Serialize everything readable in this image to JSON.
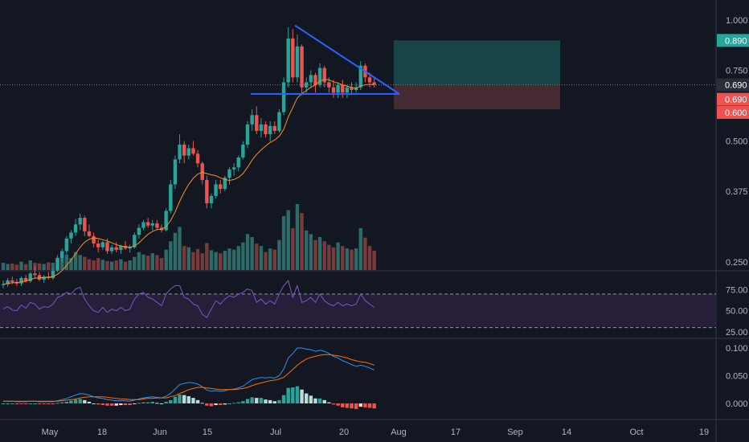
{
  "colors": {
    "background": "#131722",
    "axis_text": "#b2b5be",
    "grid": "#2a2e39",
    "up": "#26a69a",
    "down": "#ef5350",
    "vol_up": "#2d6b68",
    "vol_down": "#7a3a3c",
    "ma": "#f7931a",
    "triangle": "#2962ff",
    "target_zone": "#1b4a4e",
    "stop_zone": "#4b2c33",
    "rsi": "#7e57c2",
    "rsi_band": "#2a1f3d",
    "macd_line": "#2196f3",
    "signal_line": "#ff6d00",
    "price_label_current": "#26a69a",
    "price_label_stop": "#ef5350"
  },
  "price_axis": {
    "ticks": [
      "1.000",
      "0.750",
      "0.500",
      "0.375",
      "0.250"
    ]
  },
  "price_labels": [
    {
      "text": "0.890",
      "kind": "target"
    },
    {
      "text": "0.690",
      "kind": "current-dark"
    },
    {
      "text": "0.690",
      "kind": "entry"
    },
    {
      "text": "0.600",
      "kind": "stop"
    }
  ],
  "rsi_axis": {
    "ticks": [
      "75.00",
      "50.00",
      "25.00"
    ]
  },
  "macd_axis": {
    "ticks": [
      "0.100",
      "0.050",
      "0.000"
    ]
  },
  "time_axis": {
    "labels": [
      "May",
      "18",
      "Jun",
      "15",
      "Jul",
      "20",
      "Aug",
      "17",
      "Sep",
      "14",
      "Oct",
      "19"
    ]
  },
  "chart_data": {
    "type": "candlestick",
    "price_scale": "log",
    "candles": [
      [
        0.22,
        0.225,
        0.215,
        0.22
      ],
      [
        0.22,
        0.228,
        0.217,
        0.225
      ],
      [
        0.225,
        0.23,
        0.22,
        0.223
      ],
      [
        0.223,
        0.227,
        0.218,
        0.221
      ],
      [
        0.221,
        0.23,
        0.218,
        0.228
      ],
      [
        0.228,
        0.232,
        0.222,
        0.224
      ],
      [
        0.224,
        0.236,
        0.222,
        0.234
      ],
      [
        0.234,
        0.244,
        0.228,
        0.232
      ],
      [
        0.232,
        0.236,
        0.224,
        0.226
      ],
      [
        0.226,
        0.232,
        0.222,
        0.23
      ],
      [
        0.23,
        0.236,
        0.226,
        0.228
      ],
      [
        0.228,
        0.24,
        0.226,
        0.238
      ],
      [
        0.238,
        0.26,
        0.236,
        0.256
      ],
      [
        0.256,
        0.27,
        0.25,
        0.266
      ],
      [
        0.266,
        0.29,
        0.262,
        0.286
      ],
      [
        0.286,
        0.3,
        0.278,
        0.296
      ],
      [
        0.296,
        0.32,
        0.29,
        0.31
      ],
      [
        0.31,
        0.33,
        0.3,
        0.322
      ],
      [
        0.322,
        0.326,
        0.29,
        0.298
      ],
      [
        0.298,
        0.31,
        0.288,
        0.29
      ],
      [
        0.29,
        0.296,
        0.272,
        0.278
      ],
      [
        0.278,
        0.284,
        0.264,
        0.272
      ],
      [
        0.272,
        0.282,
        0.268,
        0.28
      ],
      [
        0.28,
        0.286,
        0.262,
        0.266
      ],
      [
        0.266,
        0.276,
        0.262,
        0.272
      ],
      [
        0.272,
        0.28,
        0.264,
        0.268
      ],
      [
        0.268,
        0.276,
        0.262,
        0.274
      ],
      [
        0.274,
        0.282,
        0.268,
        0.27
      ],
      [
        0.27,
        0.276,
        0.264,
        0.272
      ],
      [
        0.272,
        0.296,
        0.27,
        0.292
      ],
      [
        0.292,
        0.31,
        0.286,
        0.304
      ],
      [
        0.304,
        0.318,
        0.3,
        0.314
      ],
      [
        0.314,
        0.322,
        0.304,
        0.308
      ],
      [
        0.308,
        0.318,
        0.3,
        0.312
      ],
      [
        0.312,
        0.318,
        0.3,
        0.304
      ],
      [
        0.304,
        0.31,
        0.296,
        0.3
      ],
      [
        0.3,
        0.34,
        0.298,
        0.335
      ],
      [
        0.335,
        0.4,
        0.33,
        0.39
      ],
      [
        0.39,
        0.46,
        0.38,
        0.45
      ],
      [
        0.45,
        0.52,
        0.44,
        0.49
      ],
      [
        0.49,
        0.5,
        0.44,
        0.46
      ],
      [
        0.46,
        0.49,
        0.45,
        0.48
      ],
      [
        0.48,
        0.5,
        0.46,
        0.465
      ],
      [
        0.465,
        0.475,
        0.43,
        0.44
      ],
      [
        0.44,
        0.445,
        0.39,
        0.4
      ],
      [
        0.4,
        0.41,
        0.34,
        0.35
      ],
      [
        0.35,
        0.37,
        0.34,
        0.365
      ],
      [
        0.365,
        0.4,
        0.36,
        0.39
      ],
      [
        0.39,
        0.4,
        0.37,
        0.38
      ],
      [
        0.38,
        0.41,
        0.375,
        0.405
      ],
      [
        0.405,
        0.43,
        0.39,
        0.425
      ],
      [
        0.425,
        0.44,
        0.41,
        0.43
      ],
      [
        0.43,
        0.46,
        0.42,
        0.455
      ],
      [
        0.455,
        0.5,
        0.45,
        0.49
      ],
      [
        0.49,
        0.56,
        0.48,
        0.55
      ],
      [
        0.55,
        0.6,
        0.53,
        0.58
      ],
      [
        0.58,
        0.61,
        0.52,
        0.53
      ],
      [
        0.53,
        0.57,
        0.51,
        0.55
      ],
      [
        0.55,
        0.56,
        0.51,
        0.52
      ],
      [
        0.52,
        0.56,
        0.5,
        0.545
      ],
      [
        0.545,
        0.56,
        0.52,
        0.53
      ],
      [
        0.53,
        0.6,
        0.525,
        0.59
      ],
      [
        0.59,
        0.72,
        0.58,
        0.7
      ],
      [
        0.7,
        0.96,
        0.68,
        0.9
      ],
      [
        0.9,
        0.95,
        0.7,
        0.72
      ],
      [
        0.72,
        0.92,
        0.7,
        0.86
      ],
      [
        0.86,
        0.87,
        0.65,
        0.68
      ],
      [
        0.68,
        0.72,
        0.66,
        0.7
      ],
      [
        0.7,
        0.75,
        0.68,
        0.73
      ],
      [
        0.73,
        0.74,
        0.66,
        0.69
      ],
      [
        0.69,
        0.78,
        0.68,
        0.76
      ],
      [
        0.76,
        0.77,
        0.68,
        0.7
      ],
      [
        0.7,
        0.72,
        0.66,
        0.68
      ],
      [
        0.68,
        0.71,
        0.64,
        0.66
      ],
      [
        0.66,
        0.7,
        0.64,
        0.69
      ],
      [
        0.69,
        0.71,
        0.64,
        0.66
      ],
      [
        0.66,
        0.69,
        0.64,
        0.68
      ],
      [
        0.68,
        0.7,
        0.65,
        0.67
      ],
      [
        0.67,
        0.7,
        0.66,
        0.68
      ],
      [
        0.68,
        0.79,
        0.67,
        0.77
      ],
      [
        0.77,
        0.78,
        0.7,
        0.72
      ],
      [
        0.72,
        0.74,
        0.68,
        0.7
      ],
      [
        0.7,
        0.72,
        0.68,
        0.69
      ]
    ],
    "volume": [
      12,
      10,
      11,
      9,
      14,
      10,
      16,
      12,
      11,
      10,
      13,
      12,
      18,
      22,
      26,
      20,
      30,
      25,
      22,
      18,
      16,
      20,
      17,
      15,
      14,
      16,
      18,
      14,
      16,
      22,
      30,
      26,
      24,
      28,
      25,
      20,
      34,
      48,
      62,
      72,
      40,
      38,
      30,
      35,
      28,
      45,
      33,
      30,
      28,
      32,
      36,
      34,
      40,
      46,
      60,
      55,
      44,
      40,
      30,
      36,
      34,
      50,
      90,
      100,
      70,
      110,
      95,
      66,
      60,
      50,
      55,
      48,
      42,
      38,
      46,
      40,
      36,
      34,
      36,
      70,
      54,
      40,
      32
    ],
    "ma": [
      0.22,
      0.221,
      0.222,
      0.222,
      0.223,
      0.224,
      0.226,
      0.228,
      0.228,
      0.229,
      0.229,
      0.23,
      0.233,
      0.238,
      0.245,
      0.253,
      0.262,
      0.272,
      0.28,
      0.285,
      0.287,
      0.286,
      0.284,
      0.282,
      0.279,
      0.276,
      0.274,
      0.273,
      0.272,
      0.274,
      0.279,
      0.286,
      0.293,
      0.298,
      0.301,
      0.302,
      0.306,
      0.317,
      0.333,
      0.354,
      0.373,
      0.39,
      0.404,
      0.414,
      0.418,
      0.415,
      0.412,
      0.41,
      0.405,
      0.401,
      0.399,
      0.401,
      0.406,
      0.415,
      0.43,
      0.448,
      0.463,
      0.475,
      0.486,
      0.496,
      0.503,
      0.514,
      0.535,
      0.574,
      0.606,
      0.64,
      0.656,
      0.668,
      0.68,
      0.69,
      0.705,
      0.712,
      0.71,
      0.702,
      0.697,
      0.69,
      0.685,
      0.68,
      0.677,
      0.686,
      0.69,
      0.692,
      0.69
    ],
    "rsi": [
      52,
      55,
      51,
      50,
      57,
      53,
      60,
      58,
      52,
      55,
      54,
      58,
      66,
      68,
      72,
      70,
      76,
      78,
      64,
      56,
      50,
      48,
      54,
      48,
      52,
      50,
      54,
      50,
      52,
      64,
      70,
      72,
      66,
      64,
      60,
      56,
      70,
      76,
      80,
      80,
      66,
      64,
      58,
      56,
      46,
      42,
      52,
      62,
      58,
      64,
      68,
      66,
      70,
      72,
      76,
      74,
      60,
      64,
      58,
      62,
      58,
      70,
      80,
      86,
      66,
      80,
      60,
      62,
      66,
      60,
      70,
      62,
      58,
      56,
      60,
      56,
      58,
      56,
      58,
      70,
      62,
      58,
      54
    ],
    "macd": [
      0.004,
      0.004,
      0.004,
      0.003,
      0.003,
      0.003,
      0.004,
      0.004,
      0.003,
      0.003,
      0.003,
      0.003,
      0.005,
      0.007,
      0.009,
      0.012,
      0.015,
      0.018,
      0.017,
      0.015,
      0.012,
      0.01,
      0.009,
      0.007,
      0.006,
      0.005,
      0.005,
      0.005,
      0.004,
      0.006,
      0.008,
      0.01,
      0.011,
      0.012,
      0.011,
      0.01,
      0.013,
      0.018,
      0.026,
      0.034,
      0.036,
      0.038,
      0.037,
      0.035,
      0.03,
      0.024,
      0.022,
      0.023,
      0.022,
      0.023,
      0.025,
      0.026,
      0.028,
      0.031,
      0.037,
      0.043,
      0.045,
      0.047,
      0.046,
      0.047,
      0.046,
      0.05,
      0.062,
      0.082,
      0.09,
      0.1,
      0.1,
      0.098,
      0.097,
      0.094,
      0.096,
      0.094,
      0.09,
      0.085,
      0.082,
      0.077,
      0.074,
      0.07,
      0.067,
      0.069,
      0.067,
      0.064,
      0.06
    ],
    "signal": [
      0.004,
      0.004,
      0.004,
      0.004,
      0.004,
      0.004,
      0.004,
      0.004,
      0.004,
      0.004,
      0.004,
      0.004,
      0.004,
      0.005,
      0.006,
      0.007,
      0.008,
      0.01,
      0.011,
      0.012,
      0.012,
      0.012,
      0.012,
      0.011,
      0.01,
      0.009,
      0.008,
      0.008,
      0.007,
      0.007,
      0.007,
      0.008,
      0.009,
      0.009,
      0.01,
      0.01,
      0.01,
      0.012,
      0.014,
      0.018,
      0.021,
      0.025,
      0.027,
      0.029,
      0.029,
      0.028,
      0.027,
      0.026,
      0.025,
      0.025,
      0.025,
      0.025,
      0.026,
      0.027,
      0.029,
      0.032,
      0.035,
      0.037,
      0.039,
      0.041,
      0.042,
      0.044,
      0.047,
      0.054,
      0.061,
      0.069,
      0.075,
      0.08,
      0.083,
      0.085,
      0.087,
      0.088,
      0.088,
      0.087,
      0.086,
      0.084,
      0.082,
      0.079,
      0.077,
      0.075,
      0.074,
      0.072,
      0.069
    ],
    "triangle": {
      "apex_price": 0.97,
      "base_price": 0.655
    },
    "position": {
      "target": 0.89,
      "entry": 0.69,
      "stop": 0.6
    }
  }
}
